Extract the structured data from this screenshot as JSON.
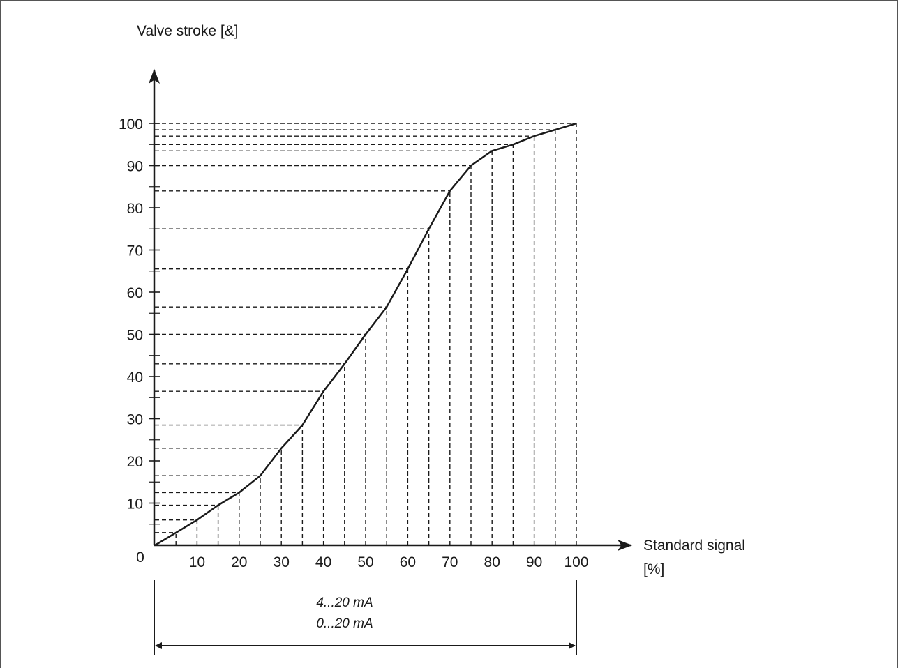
{
  "chart_data": {
    "type": "line",
    "ylabel": "Valve stroke [&]",
    "xlabel_line1": "Standard signal",
    "xlabel_line2": "[%]",
    "origin_label": "0",
    "x_ticks": [
      "10",
      "20",
      "30",
      "40",
      "50",
      "60",
      "70",
      "80",
      "90",
      "100"
    ],
    "y_ticks": [
      "10",
      "20",
      "30",
      "40",
      "50",
      "60",
      "70",
      "80",
      "90",
      "100"
    ],
    "xlim": [
      0,
      100
    ],
    "ylim": [
      0,
      100
    ],
    "grid": "dashed projection lines from each point to both axes",
    "series": [
      {
        "x": [
          0,
          5,
          10,
          15,
          20,
          25,
          30,
          35,
          40,
          45,
          50,
          55,
          60,
          65,
          70,
          75,
          80,
          85,
          90,
          95,
          100
        ],
        "values": [
          0,
          3,
          6,
          9.5,
          12.5,
          16.5,
          23,
          28.5,
          36.5,
          43,
          50,
          56.5,
          65.5,
          75,
          84,
          90,
          93.5,
          95,
          97,
          98.5,
          100
        ]
      }
    ],
    "range_labels": [
      "4...20 mA",
      "0...20 mA"
    ]
  }
}
